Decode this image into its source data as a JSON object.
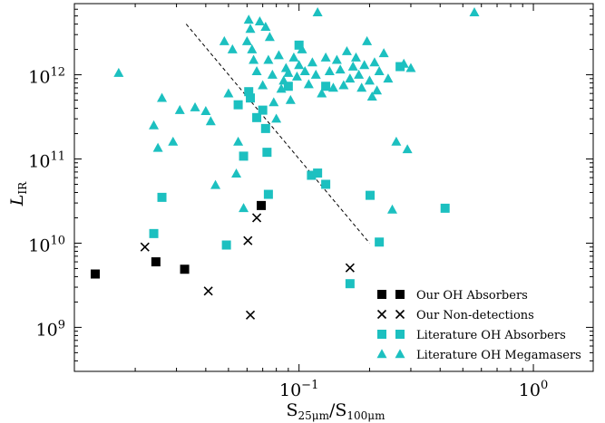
{
  "chart_data": {
    "type": "scatter",
    "title": "",
    "x_scale": "log",
    "y_scale": "log",
    "xlim": [
      0.011,
      1.8
    ],
    "ylim": [
      300000000.0,
      7000000000000.0
    ],
    "xlabel": {
      "main": "S",
      "sub1": "25μm",
      "sep": "/S",
      "sub2": "100μm"
    },
    "ylabel": {
      "main": "L",
      "sub": "IR"
    },
    "x_ticks": [
      {
        "value": 0.1,
        "base": "10",
        "exp": "−1"
      },
      {
        "value": 1,
        "base": "10",
        "exp": "0"
      }
    ],
    "y_ticks": [
      {
        "value": 1000000000.0,
        "base": "10",
        "exp": "9"
      },
      {
        "value": 10000000000.0,
        "base": "10",
        "exp": "10"
      },
      {
        "value": 100000000000.0,
        "base": "10",
        "exp": "11"
      },
      {
        "value": 1000000000000.0,
        "base": "10",
        "exp": "12"
      }
    ],
    "grid": false,
    "legend_position": "lower-right",
    "trend_line": {
      "style": "dashed",
      "points": [
        [
          0.033,
          4000000000000.0
        ],
        [
          0.2,
          10000000000.0
        ]
      ]
    },
    "series": [
      {
        "name": "Our OH Absorbers",
        "marker": "square",
        "color": "#000000",
        "points": [
          [
            0.0135,
            4300000000.0
          ],
          [
            0.0245,
            6000000000.0
          ],
          [
            0.0325,
            4900000000.0
          ],
          [
            0.069,
            28000000000.0
          ]
        ]
      },
      {
        "name": "Our Non-detections",
        "marker": "x",
        "color": "#000000",
        "points": [
          [
            0.022,
            9000000000.0
          ],
          [
            0.041,
            2700000000.0
          ],
          [
            0.0605,
            10700000000.0
          ],
          [
            0.062,
            1400000000.0
          ],
          [
            0.066,
            20000000000.0
          ],
          [
            0.165,
            5100000000.0
          ]
        ]
      },
      {
        "name": "Literature OH Absorbers",
        "marker": "square",
        "color": "#1cc0c0",
        "points": [
          [
            0.024,
            13000000000.0
          ],
          [
            0.026,
            35000000000.0
          ],
          [
            0.049,
            9500000000.0
          ],
          [
            0.055,
            440000000000.0
          ],
          [
            0.058,
            108000000000.0
          ],
          [
            0.061,
            630000000000.0
          ],
          [
            0.062,
            530000000000.0
          ],
          [
            0.066,
            310000000000.0
          ],
          [
            0.07,
            380000000000.0
          ],
          [
            0.072,
            230000000000.0
          ],
          [
            0.073,
            120000000000.0
          ],
          [
            0.074,
            38000000000.0
          ],
          [
            0.09,
            730000000000.0
          ],
          [
            0.1,
            2250000000000.0
          ],
          [
            0.113,
            64000000000.0
          ],
          [
            0.12,
            68000000000.0
          ],
          [
            0.13,
            50000000000.0
          ],
          [
            0.13,
            730000000000.0
          ],
          [
            0.165,
            3300000000.0
          ],
          [
            0.201,
            37000000000.0
          ],
          [
            0.22,
            10300000000.0
          ],
          [
            0.27,
            1250000000000.0
          ],
          [
            0.42,
            26000000000.0
          ]
        ]
      },
      {
        "name": "Literature OH Megamasers",
        "marker": "triangle",
        "color": "#1cc0c0",
        "points": [
          [
            0.017,
            1050000000000.0
          ],
          [
            0.024,
            250000000000.0
          ],
          [
            0.025,
            135000000000.0
          ],
          [
            0.026,
            530000000000.0
          ],
          [
            0.029,
            160000000000.0
          ],
          [
            0.031,
            380000000000.0
          ],
          [
            0.036,
            410000000000.0
          ],
          [
            0.04,
            370000000000.0
          ],
          [
            0.042,
            280000000000.0
          ],
          [
            0.044,
            49000000000.0
          ],
          [
            0.048,
            2500000000000.0
          ],
          [
            0.05,
            600000000000.0
          ],
          [
            0.052,
            2000000000000.0
          ],
          [
            0.054,
            67000000000.0
          ],
          [
            0.055,
            160000000000.0
          ],
          [
            0.058,
            26000000000.0
          ],
          [
            0.06,
            2500000000000.0
          ],
          [
            0.061,
            4500000000000.0
          ],
          [
            0.062,
            3500000000000.0
          ],
          [
            0.063,
            2000000000000.0
          ],
          [
            0.064,
            1500000000000.0
          ],
          [
            0.066,
            1100000000000.0
          ],
          [
            0.068,
            4300000000000.0
          ],
          [
            0.07,
            750000000000.0
          ],
          [
            0.072,
            3700000000000.0
          ],
          [
            0.074,
            1500000000000.0
          ],
          [
            0.075,
            2800000000000.0
          ],
          [
            0.077,
            1000000000000.0
          ],
          [
            0.078,
            470000000000.0
          ],
          [
            0.08,
            300000000000.0
          ],
          [
            0.082,
            1700000000000.0
          ],
          [
            0.084,
            680000000000.0
          ],
          [
            0.086,
            850000000000.0
          ],
          [
            0.088,
            1200000000000.0
          ],
          [
            0.09,
            1050000000000.0
          ],
          [
            0.092,
            500000000000.0
          ],
          [
            0.095,
            1600000000000.0
          ],
          [
            0.098,
            950000000000.0
          ],
          [
            0.1,
            1300000000000.0
          ],
          [
            0.103,
            2000000000000.0
          ],
          [
            0.106,
            1100000000000.0
          ],
          [
            0.11,
            770000000000.0
          ],
          [
            0.114,
            1400000000000.0
          ],
          [
            0.118,
            1000000000000.0
          ],
          [
            0.12,
            5500000000000.0
          ],
          [
            0.125,
            600000000000.0
          ],
          [
            0.13,
            1600000000000.0
          ],
          [
            0.135,
            1100000000000.0
          ],
          [
            0.14,
            700000000000.0
          ],
          [
            0.145,
            1500000000000.0
          ],
          [
            0.15,
            1150000000000.0
          ],
          [
            0.155,
            750000000000.0
          ],
          [
            0.16,
            1900000000000.0
          ],
          [
            0.165,
            900000000000.0
          ],
          [
            0.17,
            1250000000000.0
          ],
          [
            0.175,
            1600000000000.0
          ],
          [
            0.18,
            1000000000000.0
          ],
          [
            0.185,
            700000000000.0
          ],
          [
            0.19,
            1300000000000.0
          ],
          [
            0.195,
            2500000000000.0
          ],
          [
            0.2,
            850000000000.0
          ],
          [
            0.205,
            550000000000.0
          ],
          [
            0.21,
            1400000000000.0
          ],
          [
            0.215,
            650000000000.0
          ],
          [
            0.22,
            1100000000000.0
          ],
          [
            0.23,
            1800000000000.0
          ],
          [
            0.24,
            900000000000.0
          ],
          [
            0.25,
            25000000000.0
          ],
          [
            0.26,
            160000000000.0
          ],
          [
            0.28,
            1350000000000.0
          ],
          [
            0.29,
            130000000000.0
          ],
          [
            0.3,
            1200000000000.0
          ],
          [
            0.56,
            5500000000000.0
          ]
        ]
      }
    ]
  }
}
